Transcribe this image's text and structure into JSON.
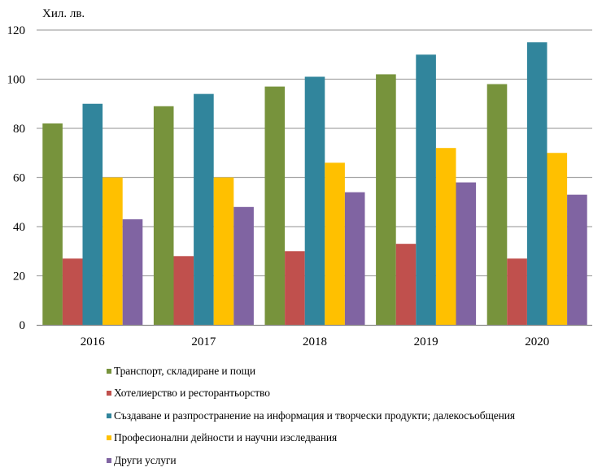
{
  "chart_data": {
    "type": "bar",
    "title": "",
    "xlabel": "",
    "ylabel": "Хил. лв.",
    "ylim": [
      0,
      120
    ],
    "yticks": [
      0,
      20,
      40,
      60,
      80,
      100,
      120
    ],
    "ytick_labels": [
      "0",
      "20",
      "40",
      "60",
      "80",
      "100",
      "120"
    ],
    "grid": true,
    "legend_position": "bottom",
    "categories": [
      "2016",
      "2017",
      "2018",
      "2019",
      "2020"
    ],
    "series": [
      {
        "name": "Транспорт, складиране и пощи",
        "color": "#77933C",
        "values": [
          82,
          89,
          97,
          102,
          98
        ]
      },
      {
        "name": "Хотелиерство и ресторантьорство",
        "color": "#C0504D",
        "values": [
          27,
          28,
          30,
          33,
          27
        ]
      },
      {
        "name": "Създаване  и разпространение на информация и творчески продукти; далекосъобщения",
        "color": "#31859C",
        "values": [
          90,
          94,
          101,
          110,
          115
        ]
      },
      {
        "name": "Професионални дейности и научни изследвания",
        "color": "#FFC000",
        "values": [
          60,
          60,
          66,
          72,
          70
        ]
      },
      {
        "name": "Други услуги",
        "color": "#8064A2",
        "values": [
          43,
          48,
          54,
          58,
          53
        ]
      }
    ]
  }
}
